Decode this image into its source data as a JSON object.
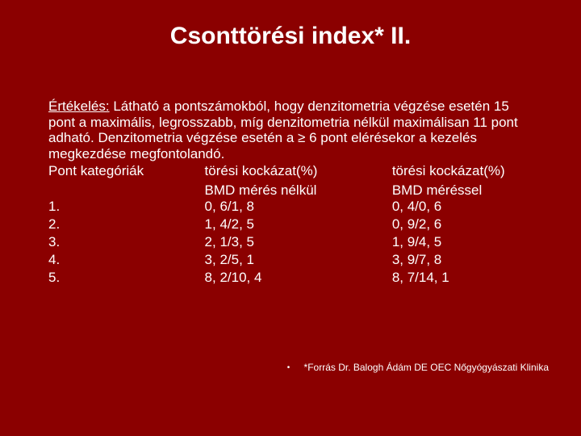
{
  "colors": {
    "background": "#8b0000",
    "text": "#ffffff"
  },
  "title": "Csonttörési index* II.",
  "paragraph": "Látható a pontszámokból, hogy denzitometria végzése esetén 15 pont a maximális, legrosszabb, míg denzitometria nélkül maximálisan 11 pont adható. Denzitometria végzése esetén a ≥ 6 pont elérésekor a kezelés megkezdése megfontolandó.",
  "paragraph_label": "Értékelés:",
  "header_row": {
    "col1": "Pont kategóriák",
    "col2": "törési kockázat(%)",
    "col3": "törési kockázat(%)"
  },
  "col_headers": {
    "col2": "BMD mérés nélkül",
    "col3": "BMD méréssel"
  },
  "rows": [
    {
      "n": "1.",
      "without": "0, 6/1, 8",
      "with": "0, 4/0, 6"
    },
    {
      "n": "2.",
      "without": "1, 4/2, 5",
      "with": "0, 9/2, 6"
    },
    {
      "n": "3.",
      "without": "2, 1/3, 5",
      "with": "1, 9/4, 5"
    },
    {
      "n": "4.",
      "without": "3, 2/5, 1",
      "with": "3, 9/7, 8"
    },
    {
      "n": "5.",
      "without": "8, 2/10, 4",
      "with": "8, 7/14, 1"
    }
  ],
  "footnote": "*Forrás Dr. Balogh Ádám DE OEC Nőgyógyászati Klinika"
}
